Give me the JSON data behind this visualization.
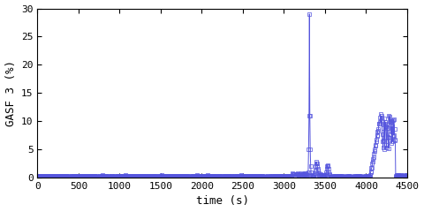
{
  "title": "",
  "xlabel": "time (s)",
  "ylabel": "GASF 3 (%)",
  "xlim": [
    0,
    4500
  ],
  "ylim": [
    0,
    30
  ],
  "xticks": [
    0,
    500,
    1000,
    1500,
    2000,
    2500,
    3000,
    3500,
    4000,
    4500
  ],
  "yticks": [
    0,
    5,
    10,
    15,
    20,
    25,
    30
  ],
  "line_color": "#5555dd",
  "marker": "s",
  "markersize": 2.5,
  "linewidth": 0.7,
  "bg_color": "#ffffff",
  "font_family": "monospace",
  "tick_fontsize": 8,
  "label_fontsize": 9
}
